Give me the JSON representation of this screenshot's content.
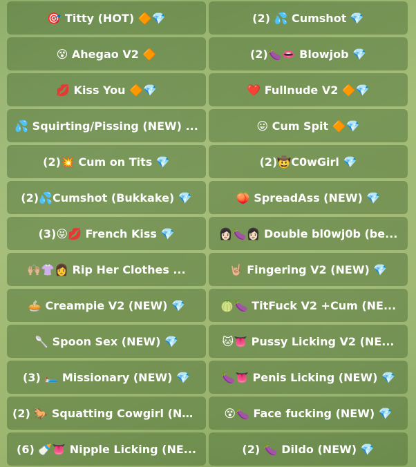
{
  "keyboard": {
    "buttons": [
      "🎯 Titty (HOT) 🔶💎",
      "(2) 💦 Cumshot 💎",
      "😵 Ahegao V2 🔶",
      "(2)🍆👄 Blowjob 💎",
      "💋 Kiss You 🔶💎",
      "❤️ Fullnude V2 🔶💎",
      "💦 Squirting/Pissing (NEW) ...",
      "😛 Cum Spit 🔶💎",
      "(2)💥 Cum on Tits 💎",
      "(2)🤠C0wGirl 💎",
      "(2)💦Cumshot (Bukkake) 💎",
      "🍑 SpreadAss (NEW) 💎",
      "(3)😝💋 French Kiss 💎",
      "👩🏻🍆👩🏻 Double bl0wj0b (be...",
      "🙌🏼👚👩 Rip Her Clothes ...",
      "🤘🏼 Fingering V2 (NEW) 💎",
      "🥧 Creampie V2 (NEW) 💎",
      "🍈🍆 TitFuck V2 +Cum (NE...",
      "🥄 Spoon Sex (NEW) 💎",
      "🐱👅 Pussy Licking V2 (NE...",
      "(3) 🛏️ Missionary (NEW) 💎",
      "🍆👅 Penis Licking (NEW) 💎",
      "(2) 🐎 Squatting Cowgirl (NE...",
      "😵🍆 Face fucking (NEW) 💎",
      "(6) 🍼👅 Nipple Licking (NE...",
      "(2) 🍆 Dildo (NEW) 💎"
    ]
  },
  "colors": {
    "background": "#9db670",
    "button": "#3e622a",
    "text": "#ffffff"
  }
}
